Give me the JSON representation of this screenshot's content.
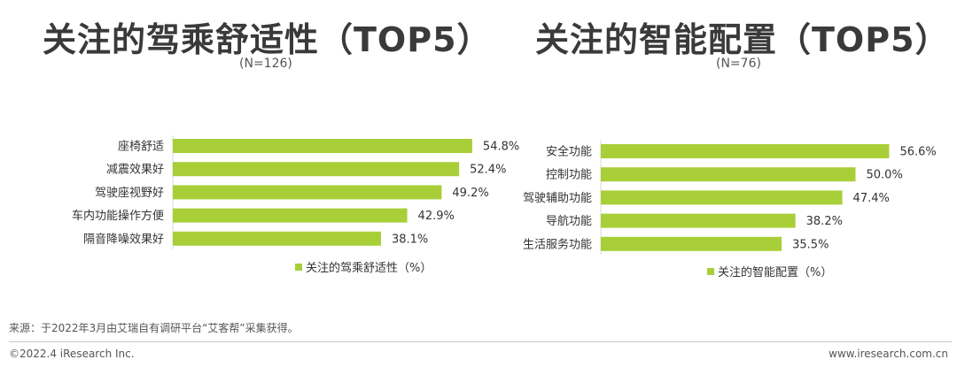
{
  "colors": {
    "bar": "#a8cf38",
    "text": "#333333",
    "title": "#3a3a3a"
  },
  "left_panel": {
    "title": "关注的驾乘舒适性（TOP5）",
    "sample": "(N=126)",
    "legend": "关注的驾乘舒适性（%）"
  },
  "right_panel": {
    "title": "关注的智能配置（TOP5）",
    "sample": "(N=76)",
    "legend": "关注的智能配置（%）"
  },
  "footer": {
    "source": "来源：于2022年3月由艾瑞自有调研平台“艾客帮”采集获得。",
    "copyright": "©2022.4 iResearch Inc.",
    "url": "www.iresearch.com.cn"
  },
  "chart_data": [
    {
      "type": "bar",
      "orientation": "horizontal",
      "categories": [
        "座椅舒适",
        "减震效果好",
        "驾驶座视野好",
        "车内功能操作方便",
        "隔音降噪效果好"
      ],
      "values": [
        54.8,
        52.4,
        49.2,
        42.9,
        38.1
      ],
      "value_labels": [
        "54.8%",
        "52.4%",
        "49.2%",
        "42.9%",
        "38.1%"
      ],
      "title": "关注的驾乘舒适性（TOP5）",
      "legend": [
        "关注的驾乘舒适性（%）"
      ],
      "legend_position": "bottom-right",
      "grid": false,
      "unit": "%"
    },
    {
      "type": "bar",
      "orientation": "horizontal",
      "categories": [
        "安全功能",
        "控制功能",
        "驾驶辅助功能",
        "导航功能",
        "生活服务功能"
      ],
      "values": [
        56.6,
        50.0,
        47.4,
        38.2,
        35.5
      ],
      "value_labels": [
        "56.6%",
        "50.0%",
        "47.4%",
        "38.2%",
        "35.5%"
      ],
      "title": "关注的智能配置（TOP5）",
      "legend": [
        "关注的智能配置（%）"
      ],
      "legend_position": "bottom-right",
      "grid": false,
      "unit": "%"
    }
  ]
}
